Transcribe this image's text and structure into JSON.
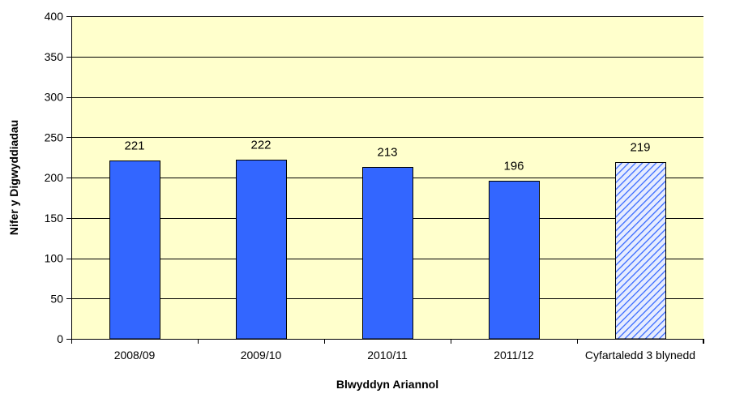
{
  "chart_data": {
    "type": "bar",
    "categories": [
      "2008/09",
      "2009/10",
      "2010/11",
      "2011/12",
      "Cyfartaledd 3 blynedd"
    ],
    "values": [
      221,
      222,
      213,
      196,
      219
    ],
    "data_labels": [
      "221",
      "222",
      "213",
      "196",
      "219"
    ],
    "hatched": [
      false,
      false,
      false,
      false,
      true
    ],
    "xlabel": "Blwyddyn Ariannol",
    "ylabel": "Nifer y Digwyddiadau",
    "ylim": [
      0,
      400
    ],
    "yticks": [
      0,
      50,
      100,
      150,
      200,
      250,
      300,
      350,
      400
    ],
    "ytick_labels": [
      "0",
      "50",
      "100",
      "150",
      "200",
      "250",
      "300",
      "350",
      "400"
    ],
    "grid": true,
    "legend": "none",
    "colors": {
      "bar": "#3366ff",
      "hatch_fill": "#e6ecff",
      "hatch_line": "#3366ff",
      "plot_background": "#ffffcc",
      "gridline": "#000000"
    }
  }
}
